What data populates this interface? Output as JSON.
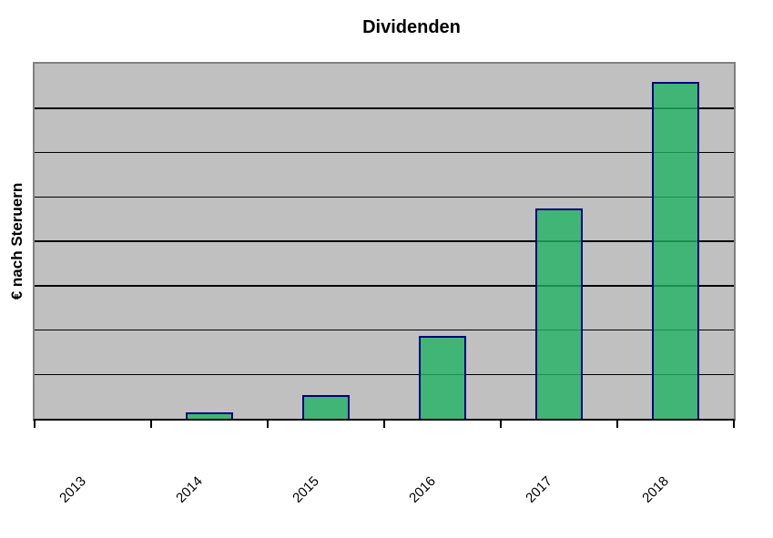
{
  "chart_data": {
    "type": "bar",
    "title": "Dividenden",
    "xlabel": "",
    "ylabel": "€ nach Steruern",
    "categories": [
      "2013",
      "2014",
      "2015",
      "2016",
      "2017",
      "2018"
    ],
    "series": [
      {
        "name": "Dividenden",
        "values_relative": [
          0,
          0.018,
          0.067,
          0.233,
          0.592,
          0.949
        ]
      }
    ],
    "y_tick_labels": "none",
    "gridlines": "horizontal",
    "gridline_intervals": 8,
    "legend": "none",
    "x_label_rotation_deg": 45
  },
  "colors": {
    "background": "#FFFFFF",
    "plot_background": "#C0C0C0",
    "plot_border": "#808080",
    "axis_line": "#000000",
    "gridline": "#000000",
    "bar_fill": "#42B476",
    "bar_fill_rgba": "rgba(33,177,98,0.8)",
    "bar_border": "#000080",
    "text": "#000000"
  }
}
